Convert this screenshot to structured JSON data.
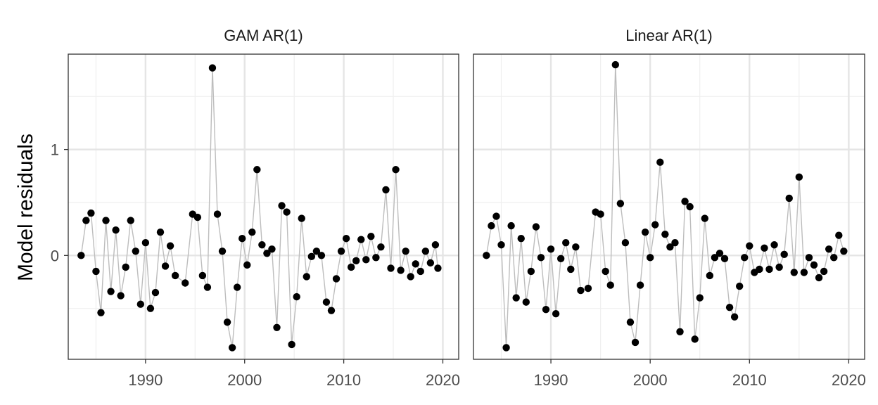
{
  "chart_data": {
    "type": "scatter",
    "ylabel": "Model residuals",
    "xlabel": "",
    "xlim": [
      1982.2,
      2021.6
    ],
    "ylim": [
      -0.98,
      1.9
    ],
    "x_ticks": [
      1990,
      2000,
      2010,
      2020
    ],
    "y_ticks": [
      0,
      1
    ],
    "grid": true,
    "lines_connect_points": true,
    "colors": {
      "points": "#000000",
      "line": "#bdbdbd",
      "grid": "#e5e5e5",
      "border": "#333333"
    },
    "panels": [
      {
        "title": "GAM AR(1)",
        "x": [
          1983.5,
          1984,
          1984.5,
          1985,
          1985.5,
          1986,
          1986.5,
          1987,
          1987.5,
          1988,
          1988.5,
          1989,
          1989.5,
          1990,
          1990.5,
          1991,
          1991.5,
          1992,
          1992.5,
          1993,
          1994,
          1994.75,
          1995.25,
          1995.75,
          1996.25,
          1996.75,
          1997.25,
          1997.75,
          1998.25,
          1998.75,
          1999.25,
          1999.75,
          2000.25,
          2000.75,
          2001.25,
          2001.75,
          2002.25,
          2002.75,
          2003.25,
          2003.75,
          2004.25,
          2004.75,
          2005.25,
          2005.75,
          2006.25,
          2006.75,
          2007.25,
          2007.75,
          2008.25,
          2008.75,
          2009.25,
          2009.75,
          2010.25,
          2010.75,
          2011.25,
          2011.75,
          2012.25,
          2012.75,
          2013.25,
          2013.75,
          2014.25,
          2014.75,
          2015.25,
          2015.75,
          2016.25,
          2016.75,
          2017.25,
          2017.75,
          2018.25,
          2018.75,
          2019.25,
          2019.5
        ],
        "y": [
          0,
          0.33,
          0.4,
          -0.15,
          -0.54,
          0.33,
          -0.34,
          0.24,
          -0.38,
          -0.11,
          0.33,
          0.04,
          -0.46,
          0.12,
          -0.5,
          -0.35,
          0.22,
          -0.1,
          0.09,
          -0.19,
          -0.26,
          0.39,
          0.36,
          -0.19,
          -0.3,
          1.77,
          0.39,
          0.04,
          -0.63,
          -0.87,
          -0.3,
          0.16,
          -0.09,
          0.22,
          0.81,
          0.1,
          0.02,
          0.06,
          -0.68,
          0.47,
          0.41,
          -0.84,
          -0.39,
          0.35,
          -0.2,
          -0.01,
          0.04,
          0,
          -0.44,
          -0.52,
          -0.22,
          0.04,
          0.16,
          -0.11,
          -0.05,
          0.15,
          -0.04,
          0.18,
          -0.02,
          0.08,
          0.62,
          -0.12,
          0.81,
          -0.14,
          0.04,
          -0.2,
          -0.08,
          -0.15,
          0.04,
          -0.07,
          0.1,
          -0.12
        ]
      },
      {
        "title": "Linear AR(1)",
        "x": [
          1983.5,
          1984,
          1984.5,
          1985,
          1985.5,
          1986,
          1986.5,
          1987,
          1987.5,
          1988,
          1988.5,
          1989,
          1989.5,
          1990,
          1990.5,
          1991,
          1991.5,
          1992,
          1992.5,
          1993,
          1993.75,
          1994.5,
          1995,
          1995.5,
          1996,
          1996.5,
          1997,
          1997.5,
          1998,
          1998.5,
          1999,
          1999.5,
          2000,
          2000.5,
          2001,
          2001.5,
          2002,
          2002.5,
          2003,
          2003.5,
          2004,
          2004.5,
          2005,
          2005.5,
          2006,
          2006.5,
          2007,
          2007.5,
          2008,
          2008.5,
          2009,
          2009.5,
          2010,
          2010.5,
          2011,
          2011.5,
          2012,
          2012.5,
          2013,
          2013.5,
          2014,
          2014.5,
          2015,
          2015.5,
          2016,
          2016.5,
          2017,
          2017.5,
          2018,
          2018.5,
          2019,
          2019.5
        ],
        "y": [
          0,
          0.28,
          0.37,
          0.1,
          -0.87,
          0.28,
          -0.4,
          0.16,
          -0.44,
          -0.15,
          0.27,
          -0.02,
          -0.51,
          0.06,
          -0.55,
          -0.03,
          0.12,
          -0.13,
          0.08,
          -0.33,
          -0.31,
          0.41,
          0.39,
          -0.15,
          -0.28,
          1.8,
          0.49,
          0.12,
          -0.63,
          -0.82,
          -0.28,
          0.22,
          -0.02,
          0.29,
          0.88,
          0.2,
          0.08,
          0.12,
          -0.72,
          0.51,
          0.46,
          -0.79,
          -0.4,
          0.35,
          -0.19,
          -0.02,
          0.02,
          -0.03,
          -0.49,
          -0.58,
          -0.29,
          -0.02,
          0.09,
          -0.16,
          -0.13,
          0.07,
          -0.13,
          0.1,
          -0.11,
          0.01,
          0.54,
          -0.16,
          0.74,
          -0.16,
          -0.02,
          -0.09,
          -0.21,
          -0.15,
          0.06,
          -0.02,
          0.19,
          0.04
        ]
      }
    ]
  }
}
